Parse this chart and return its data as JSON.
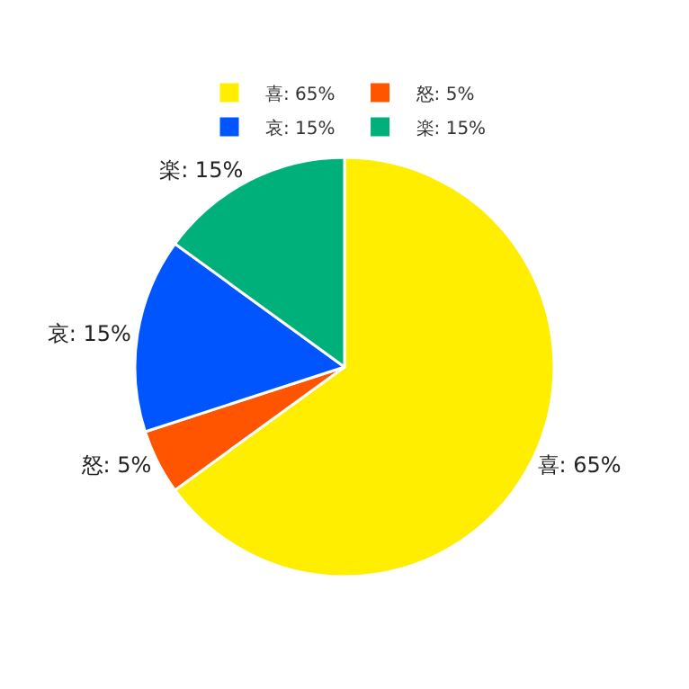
{
  "chart_data": {
    "type": "pie",
    "categories": [
      "喜: 65%",
      "怒: 5%",
      "哀: 15%",
      "楽: 15%"
    ],
    "values": [
      65,
      5,
      15,
      15
    ],
    "colors": [
      "#ffee00",
      "#ff5500",
      "#0055ff",
      "#00b07a"
    ],
    "legend": "top"
  }
}
